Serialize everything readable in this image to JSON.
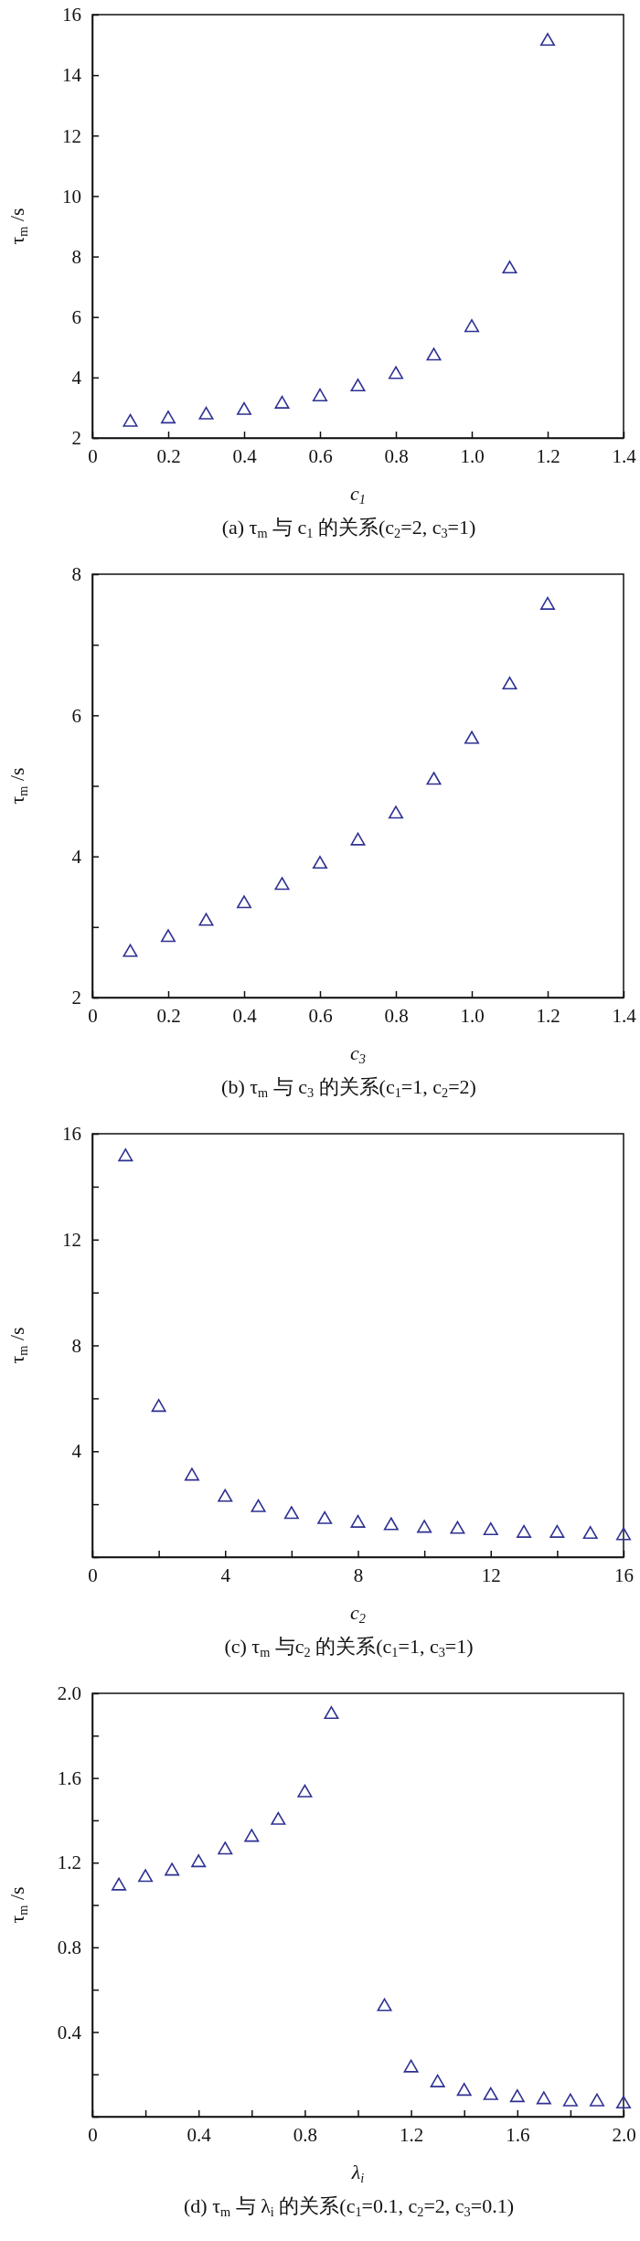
{
  "chart_data": [
    {
      "type": "scatter",
      "title": "(a) τ$_{m}$ 与 c$_{1}$ 的关系(c$_{2}$=2, c$_{3}$=1)",
      "xlabel": "c$_{1}$",
      "ylabel": "τ$_{m}$ /s",
      "marker": "triangle",
      "x": [
        0.1,
        0.2,
        0.3,
        0.4,
        0.5,
        0.6,
        0.7,
        0.8,
        0.9,
        1.0,
        1.1,
        1.2
      ],
      "series": [
        {
          "color": "#2e3192",
          "values": [
            2.52,
            2.63,
            2.76,
            2.91,
            3.12,
            3.36,
            3.69,
            4.1,
            4.71,
            5.65,
            7.59,
            15.12
          ]
        }
      ],
      "xlim": [
        0,
        1.4
      ],
      "xticks": [
        0,
        {
          "value": 0.2,
          "label": "0.2"
        },
        {
          "value": 0.4,
          "label": "0.4"
        },
        {
          "value": 0.6,
          "label": "0.6"
        },
        {
          "value": 0.8,
          "label": "0.8"
        },
        {
          "value": 1.0,
          "label": "1.0"
        },
        {
          "value": 1.2,
          "label": "1.2"
        },
        {
          "value": 1.4,
          "label": "1.4"
        }
      ],
      "ylim": [
        2,
        16
      ],
      "yticks": [
        2,
        4,
        6,
        8,
        10,
        12,
        14,
        16
      ]
    },
    {
      "type": "scatter",
      "title": "(b) τ$_{m}$ 与 c$_{3}$ 的关系(c$_{1}$=1, c$_{2}$=2)",
      "xlabel": "c$_{3}$",
      "ylabel": "τ$_{m}$ /s",
      "marker": "triangle",
      "x": [
        0.1,
        0.2,
        0.3,
        0.4,
        0.5,
        0.6,
        0.7,
        0.8,
        0.9,
        1.0,
        1.1,
        1.2
      ],
      "series": [
        {
          "color": "#2e3192",
          "values": [
            2.64,
            2.85,
            3.08,
            3.33,
            3.59,
            3.89,
            4.22,
            4.6,
            5.08,
            5.66,
            6.43,
            7.56
          ]
        }
      ],
      "xlim": [
        0,
        1.4
      ],
      "xticks": [
        0,
        {
          "value": 0.2,
          "label": "0.2"
        },
        {
          "value": 0.4,
          "label": "0.4"
        },
        {
          "value": 0.6,
          "label": "0.6"
        },
        {
          "value": 0.8,
          "label": "0.8"
        },
        {
          "value": 1.0,
          "label": "1.0"
        },
        {
          "value": 1.2,
          "label": "1.2"
        },
        {
          "value": 1.4,
          "label": "1.4"
        }
      ],
      "ylim": [
        2,
        8
      ],
      "yticks": [
        2,
        {
          "value": 3,
          "label": null
        },
        4,
        {
          "value": 5,
          "label": null
        },
        6,
        {
          "value": 7,
          "label": null
        },
        8
      ]
    },
    {
      "type": "scatter",
      "title": "(c) τ$_{m}$ 与c$_{2}$ 的关系(c$_{1}$=1, c$_{3}$=1)",
      "xlabel": "c$_{2}$",
      "ylabel": "τ$_{m}$ /s",
      "marker": "triangle",
      "x": [
        1,
        2,
        3,
        4,
        5,
        6,
        7,
        8,
        9,
        10,
        11,
        12,
        13,
        14,
        15,
        16
      ],
      "series": [
        {
          "color": "#2e3192",
          "values": [
            15.13,
            5.66,
            3.06,
            2.26,
            1.87,
            1.61,
            1.42,
            1.28,
            1.19,
            1.09,
            1.05,
            1.0,
            0.9,
            0.9,
            0.86,
            0.81
          ]
        }
      ],
      "xlim": [
        0,
        16
      ],
      "xticks": [
        0,
        {
          "value": 2,
          "label": null
        },
        4,
        {
          "value": 6,
          "label": null
        },
        8,
        {
          "value": 10,
          "label": null
        },
        12,
        {
          "value": 14,
          "label": null
        },
        16
      ],
      "ylim": [
        0,
        16
      ],
      "yticks": [
        {
          "value": 0,
          "label": null
        },
        {
          "value": 2,
          "label": null
        },
        4,
        {
          "value": 6,
          "label": null
        },
        8,
        {
          "value": 10,
          "label": null
        },
        12,
        {
          "value": 14,
          "label": null
        },
        16
      ]
    },
    {
      "type": "scatter",
      "title": "(d) τ$_{m}$ 与 λ$_{i}$ 的关系(c$_{1}$=0.1, c$_{2}$=2, c$_{3}$=0.1)",
      "xlabel": "λ$_{i}$",
      "ylabel": "τ$_{m}$ /s",
      "marker": "triangle",
      "x": [
        0.1,
        0.2,
        0.3,
        0.4,
        0.5,
        0.6,
        0.7,
        0.8,
        0.9,
        1.1,
        1.2,
        1.3,
        1.4,
        1.5,
        1.6,
        1.7,
        1.8,
        1.9,
        2.0
      ],
      "series": [
        {
          "color": "#2e3192",
          "values": [
            1.09,
            1.13,
            1.16,
            1.2,
            1.26,
            1.32,
            1.4,
            1.53,
            1.9,
            0.52,
            0.23,
            0.16,
            0.12,
            0.1,
            0.09,
            0.08,
            0.07,
            0.07,
            0.06
          ]
        }
      ],
      "xlim": [
        0,
        2.0
      ],
      "xticks": [
        0,
        {
          "value": 0.2,
          "label": null
        },
        0.4,
        {
          "value": 0.6,
          "label": null
        },
        0.8,
        {
          "value": 1.0,
          "label": null
        },
        1.2,
        {
          "value": 1.4,
          "label": null
        },
        1.6,
        {
          "value": 1.8,
          "label": null
        },
        {
          "value": 2.0,
          "label": "2.0"
        }
      ],
      "ylim": [
        0,
        2.0
      ],
      "yticks": [
        {
          "value": 0,
          "label": null
        },
        {
          "value": 0.2,
          "label": null
        },
        0.4,
        {
          "value": 0.6,
          "label": null
        },
        0.8,
        {
          "value": 1.0,
          "label": null
        },
        1.2,
        {
          "value": 1.4,
          "label": null
        },
        1.6,
        {
          "value": 1.8,
          "label": null
        },
        {
          "value": 2.0,
          "label": "2.0"
        }
      ]
    }
  ]
}
